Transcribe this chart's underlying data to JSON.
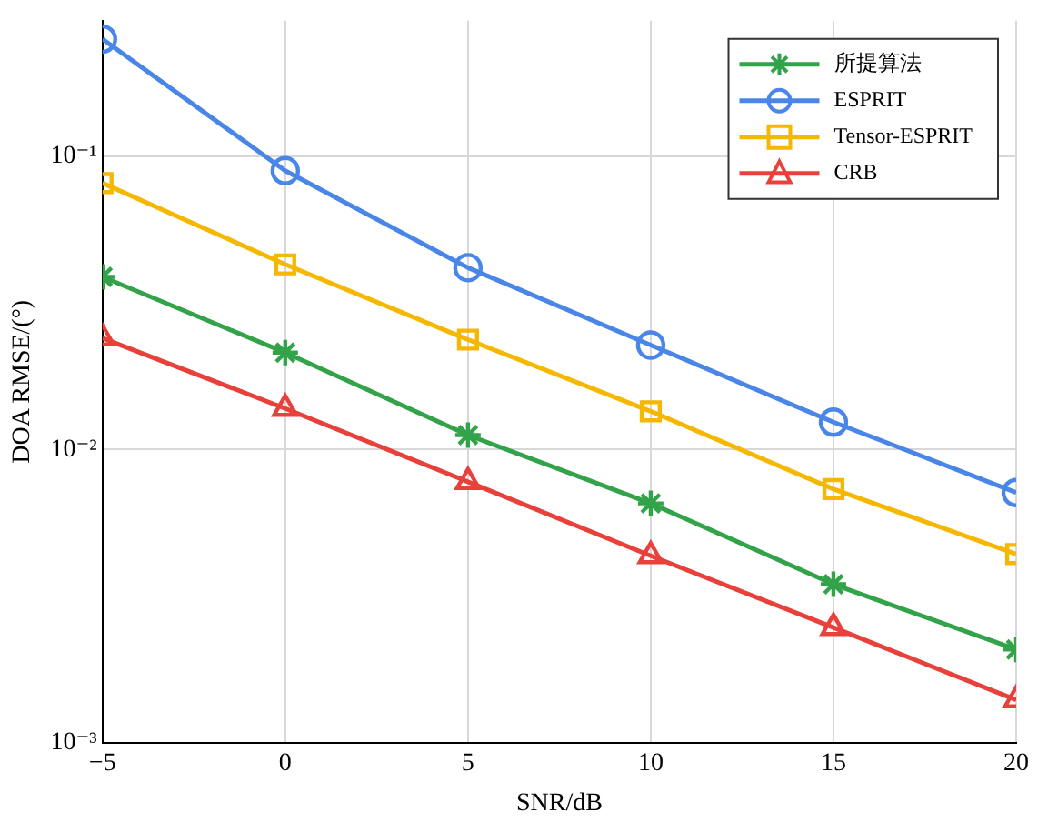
{
  "chart_data": {
    "type": "line",
    "xlabel": "SNR/dB",
    "ylabel": "DOA RMSE/(°)",
    "x": [
      -5,
      0,
      5,
      10,
      15,
      20
    ],
    "series": [
      {
        "name": "所提算法",
        "color": "#33a34a",
        "marker": "cross",
        "values": [
          0.0388,
          0.0214,
          0.0112,
          0.00655,
          0.00347,
          0.00208
        ]
      },
      {
        "name": "ESPRIT",
        "color": "#4a86e8",
        "marker": "circle",
        "values": [
          0.251,
          0.0893,
          0.0417,
          0.0227,
          0.0124,
          0.00713
        ]
      },
      {
        "name": "Tensor-ESPRIT",
        "color": "#f5b700",
        "marker": "square",
        "values": [
          0.081,
          0.0428,
          0.0237,
          0.0135,
          0.00733,
          0.0044
        ]
      },
      {
        "name": "CRB",
        "color": "#e8403a",
        "marker": "triangle",
        "values": [
          0.024,
          0.0138,
          0.00776,
          0.00434,
          0.00247,
          0.0014
        ]
      }
    ],
    "log": "y",
    "xlim": [
      -5,
      20
    ],
    "xticks": [
      {
        "value": -5,
        "label": "−5"
      },
      0,
      5,
      10,
      15,
      20
    ],
    "ylim": [
      0.001,
      0.29
    ],
    "yticks": [
      {
        "value": 0.001,
        "label": "10⁻³"
      },
      {
        "value": 0.01,
        "label": "10⁻²"
      },
      {
        "value": 0.1,
        "label": "10⁻¹"
      }
    ],
    "grid": true,
    "legend": "top right",
    "line_style": "solid"
  }
}
